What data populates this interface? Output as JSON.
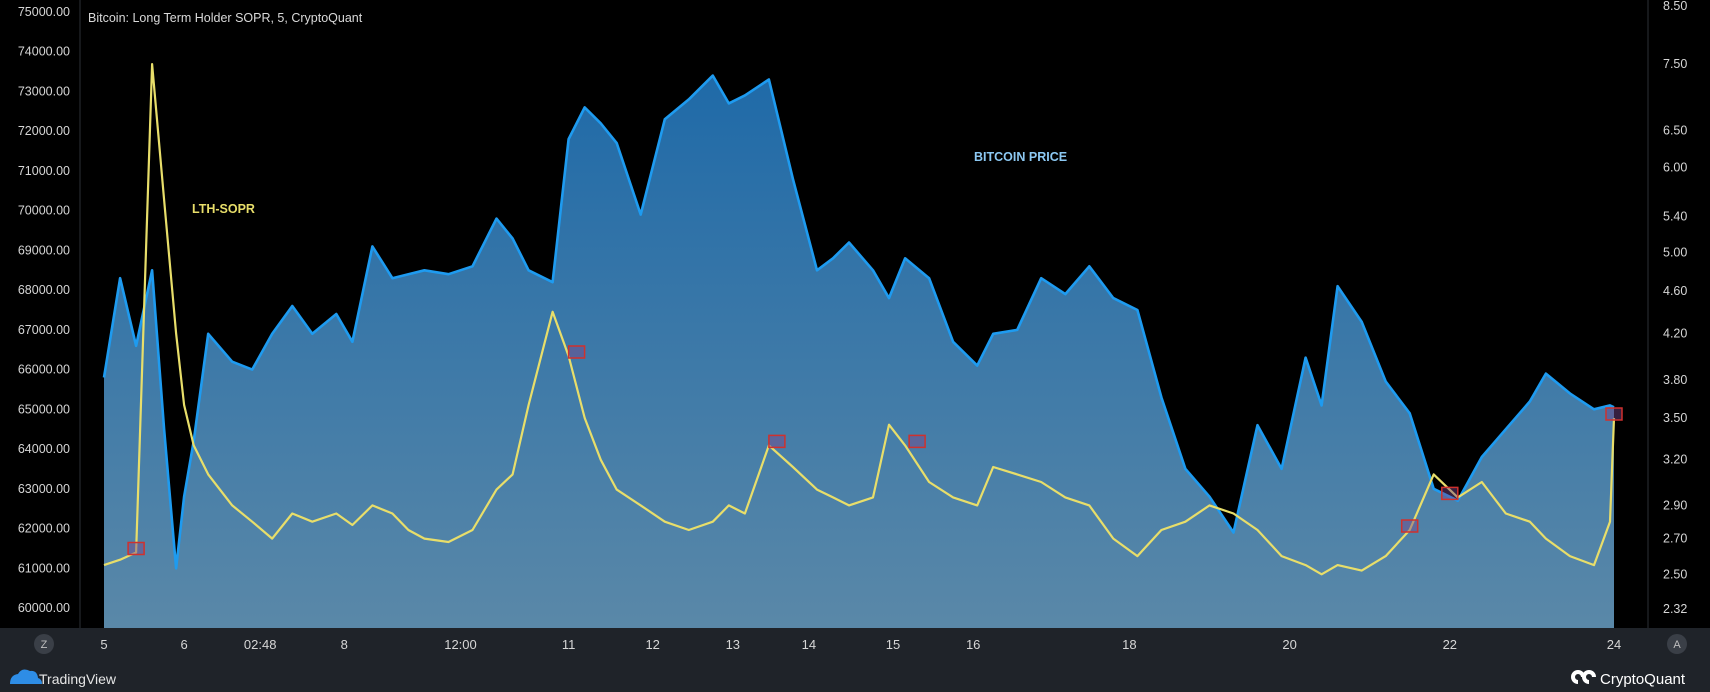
{
  "title": "Bitcoin: Long Term Holder SOPR, 5, CryptoQuant",
  "footer": {
    "left_brand": "TradingView",
    "right_brand": "CryptoQuant"
  },
  "buttons": {
    "left_scale": "Z",
    "right_scale": "A"
  },
  "colors": {
    "background": "#000000",
    "price_line": "#1e9bf0",
    "sopr_line": "#e8de6a",
    "marker_stroke": "#d0312d",
    "panel": "#1f2329"
  },
  "chart_data": {
    "type": "line",
    "title": "Bitcoin: Long Term Holder SOPR, 5, CryptoQuant",
    "x_ticks": [
      "5",
      "6",
      "02:48",
      "8",
      "12:00",
      "11",
      "12",
      "13",
      "14",
      "15",
      "16",
      "18",
      "20",
      "22",
      "24"
    ],
    "y_left": {
      "ticks": [
        "75000.00",
        "74000.00",
        "73000.00",
        "72000.00",
        "71000.00",
        "70000.00",
        "69000.00",
        "68000.00",
        "67000.00",
        "66000.00",
        "65000.00",
        "64000.00",
        "63000.00",
        "62000.00",
        "61000.00",
        "60000.00"
      ],
      "range": [
        59500,
        75000
      ]
    },
    "y_right": {
      "ticks": [
        "8.50",
        "7.50",
        "6.50",
        "6.00",
        "5.40",
        "5.00",
        "4.60",
        "4.20",
        "3.80",
        "3.50",
        "3.20",
        "2.90",
        "2.70",
        "2.50",
        "2.32"
      ],
      "scale": "log"
    },
    "x": [
      5.0,
      5.2,
      5.4,
      5.6,
      5.75,
      5.9,
      6.0,
      6.12,
      6.3,
      6.6,
      6.85,
      7.1,
      7.35,
      7.6,
      7.9,
      8.1,
      8.35,
      8.6,
      8.8,
      9.0,
      9.3,
      9.6,
      9.9,
      10.1,
      10.3,
      10.6,
      10.8,
      11.0,
      11.2,
      11.4,
      11.7,
      12.0,
      12.3,
      12.6,
      12.8,
      13.0,
      13.3,
      13.6,
      13.9,
      14.1,
      14.3,
      14.6,
      14.8,
      15.0,
      15.3,
      15.6,
      15.9,
      16.1,
      16.4,
      16.7,
      17.0,
      17.3,
      17.6,
      17.9,
      18.2,
      18.5,
      18.8,
      19.1,
      19.4,
      19.7,
      20.0,
      20.2,
      20.4,
      20.7,
      21.0,
      21.3,
      21.6,
      21.9,
      22.2,
      22.5,
      22.8,
      23.0,
      23.3,
      23.6,
      23.8,
      23.85
    ],
    "series": [
      {
        "name": "BITCOIN PRICE",
        "values": [
          65800,
          68300,
          66600,
          68500,
          64500,
          61000,
          62800,
          64200,
          66900,
          66200,
          66000,
          66900,
          67600,
          66900,
          67400,
          66700,
          69100,
          68300,
          68400,
          68500,
          68400,
          68600,
          69800,
          69300,
          68500,
          68200,
          71800,
          72600,
          72200,
          71700,
          69900,
          72300,
          72800,
          73400,
          72700,
          72900,
          73300,
          70800,
          68500,
          68800,
          69200,
          68500,
          67800,
          68800,
          68300,
          66700,
          66100,
          66900,
          67000,
          68300,
          67900,
          68600,
          67800,
          67500,
          65300,
          63500,
          62800,
          61900,
          64600,
          63500,
          66300,
          65100,
          68100,
          67200,
          65700,
          64900,
          63000,
          62700,
          63800,
          64500,
          65200,
          65900,
          65400,
          65000,
          65100,
          65050
        ]
      },
      {
        "name": "LTH-SOPR",
        "values": [
          2.55,
          2.58,
          2.62,
          7.5,
          5.6,
          4.2,
          3.6,
          3.3,
          3.1,
          2.9,
          2.8,
          2.7,
          2.85,
          2.8,
          2.85,
          2.78,
          2.9,
          2.85,
          2.75,
          2.7,
          2.68,
          2.75,
          3.0,
          3.1,
          3.6,
          4.4,
          4.0,
          3.5,
          3.2,
          3.0,
          2.9,
          2.8,
          2.75,
          2.8,
          2.9,
          2.85,
          3.3,
          3.15,
          3.0,
          2.95,
          2.9,
          2.95,
          3.45,
          3.3,
          3.05,
          2.95,
          2.9,
          3.15,
          3.1,
          3.05,
          2.95,
          2.9,
          2.7,
          2.6,
          2.75,
          2.8,
          2.9,
          2.85,
          2.75,
          2.6,
          2.55,
          2.5,
          2.55,
          2.52,
          2.6,
          2.75,
          3.1,
          2.95,
          3.05,
          2.85,
          2.8,
          2.7,
          2.6,
          2.55,
          2.8,
          3.5
        ]
      }
    ],
    "annotations": [
      "LTH-SOPR",
      "BITCOIN PRICE"
    ],
    "highlight_x": [
      5.4,
      10.9,
      13.4,
      15.15,
      21.3,
      21.8,
      23.85
    ],
    "grid": false,
    "legend": "none"
  }
}
